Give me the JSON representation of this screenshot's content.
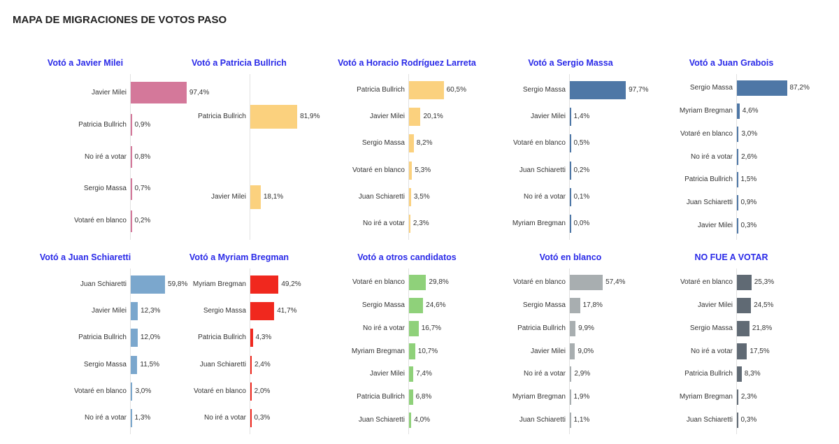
{
  "page": {
    "title": "MAPA DE MIGRACIONES DE VOTOS PASO"
  },
  "colors": {
    "milei": "#d4789a",
    "bullrich": "#fbd17e",
    "larreta": "#fbd17e",
    "massa": "#4e77a6",
    "grabois": "#4e77a6",
    "schiaretti": "#7ba7cd",
    "bregman": "#f0281e",
    "otros": "#8fd17a",
    "blanco": "#a8aeb0",
    "novoto": "#606a74",
    "title": "#2a2ae8"
  },
  "chart_data": [
    {
      "type": "bar",
      "orientation": "horizontal",
      "title": "Votó a Javier Milei",
      "color_key": "milei",
      "categories": [
        "Javier Milei",
        "Patricia Bullrich",
        "No iré a votar",
        "Sergio Massa",
        "Votaré en blanco"
      ],
      "values": [
        97.4,
        0.9,
        0.8,
        0.7,
        0.2
      ],
      "labels": [
        "97,4%",
        "0,9%",
        "0,8%",
        "0,7%",
        "0,2%"
      ]
    },
    {
      "type": "bar",
      "orientation": "horizontal",
      "title": "Votó a Patricia Bullrich",
      "color_key": "bullrich",
      "categories": [
        "Patricia Bullrich",
        "Javier Milei"
      ],
      "values": [
        81.9,
        18.1
      ],
      "labels": [
        "81,9%",
        "18,1%"
      ]
    },
    {
      "type": "bar",
      "orientation": "horizontal",
      "title": "Votó a Horacio Rodríguez Larreta",
      "color_key": "larreta",
      "categories": [
        "Patricia Bullrich",
        "Javier Milei",
        "Sergio Massa",
        "Votaré en blanco",
        "Juan Schiaretti",
        "No iré a votar"
      ],
      "values": [
        60.5,
        20.1,
        8.2,
        5.3,
        3.5,
        2.3
      ],
      "labels": [
        "60,5%",
        "20,1%",
        "8,2%",
        "5,3%",
        "3,5%",
        "2,3%"
      ]
    },
    {
      "type": "bar",
      "orientation": "horizontal",
      "title": "Votó a Sergio Massa",
      "color_key": "massa",
      "categories": [
        "Sergio Massa",
        "Javier Milei",
        "Votaré en blanco",
        "Juan Schiaretti",
        "No iré a votar",
        "Myriam Bregman"
      ],
      "values": [
        97.7,
        1.4,
        0.5,
        0.2,
        0.1,
        0.0
      ],
      "labels": [
        "97,7%",
        "1,4%",
        "0,5%",
        "0,2%",
        "0,1%",
        "0,0%"
      ]
    },
    {
      "type": "bar",
      "orientation": "horizontal",
      "title": "Votó a Juan Grabois",
      "color_key": "grabois",
      "categories": [
        "Sergio Massa",
        "Myriam Bregman",
        "Votaré en blanco",
        "No iré a votar",
        "Patricia Bullrich",
        "Juan Schiaretti",
        "Javier Milei"
      ],
      "values": [
        87.2,
        4.6,
        3.0,
        2.6,
        1.5,
        0.9,
        0.3
      ],
      "labels": [
        "87,2%",
        "4,6%",
        "3,0%",
        "2,6%",
        "1,5%",
        "0,9%",
        "0,3%"
      ]
    },
    {
      "type": "bar",
      "orientation": "horizontal",
      "title": "Votó a Juan Schiaretti",
      "color_key": "schiaretti",
      "categories": [
        "Juan Schiaretti",
        "Javier Milei",
        "Patricia Bullrich",
        "Sergio Massa",
        "Votaré en blanco",
        "No iré a votar"
      ],
      "values": [
        59.8,
        12.3,
        12.0,
        11.5,
        3.0,
        1.3
      ],
      "labels": [
        "59,8%",
        "12,3%",
        "12,0%",
        "11,5%",
        "3,0%",
        "1,3%"
      ]
    },
    {
      "type": "bar",
      "orientation": "horizontal",
      "title": "Votó a Myriam Bregman",
      "color_key": "bregman",
      "categories": [
        "Myriam Bregman",
        "Sergio Massa",
        "Patricia Bullrich",
        "Juan Schiaretti",
        "Votaré en blanco",
        "No iré a votar"
      ],
      "values": [
        49.2,
        41.7,
        4.3,
        2.4,
        2.0,
        0.3
      ],
      "labels": [
        "49,2%",
        "41,7%",
        "4,3%",
        "2,4%",
        "2,0%",
        "0,3%"
      ]
    },
    {
      "type": "bar",
      "orientation": "horizontal",
      "title": "Votó a otros candidatos",
      "color_key": "otros",
      "categories": [
        "Votaré en blanco",
        "Sergio Massa",
        "No iré a votar",
        "Myriam Bregman",
        "Javier Milei",
        "Patricia Bullrich",
        "Juan Schiaretti"
      ],
      "values": [
        29.8,
        24.6,
        16.7,
        10.7,
        7.4,
        6.8,
        4.0
      ],
      "labels": [
        "29,8%",
        "24,6%",
        "16,7%",
        "10,7%",
        "7,4%",
        "6,8%",
        "4,0%"
      ]
    },
    {
      "type": "bar",
      "orientation": "horizontal",
      "title": "Votó en blanco",
      "color_key": "blanco",
      "categories": [
        "Votaré en blanco",
        "Sergio Massa",
        "Patricia Bullrich",
        "Javier Milei",
        "No iré a votar",
        "Myriam Bregman",
        "Juan Schiaretti"
      ],
      "values": [
        57.4,
        17.8,
        9.9,
        9.0,
        2.9,
        1.9,
        1.1
      ],
      "labels": [
        "57,4%",
        "17,8%",
        "9,9%",
        "9,0%",
        "2,9%",
        "1,9%",
        "1,1%"
      ]
    },
    {
      "type": "bar",
      "orientation": "horizontal",
      "title": "NO FUE A VOTAR",
      "color_key": "novoto",
      "categories": [
        "Votaré en blanco",
        "Javier Milei",
        "Sergio Massa",
        "No iré a votar",
        "Patricia Bullrich",
        "Myriam Bregman",
        "Juan Schiaretti"
      ],
      "values": [
        25.3,
        24.5,
        21.8,
        17.5,
        8.3,
        2.3,
        0.3
      ],
      "labels": [
        "25,3%",
        "24,5%",
        "21,8%",
        "17,5%",
        "8,3%",
        "2,3%",
        "0,3%"
      ]
    }
  ]
}
